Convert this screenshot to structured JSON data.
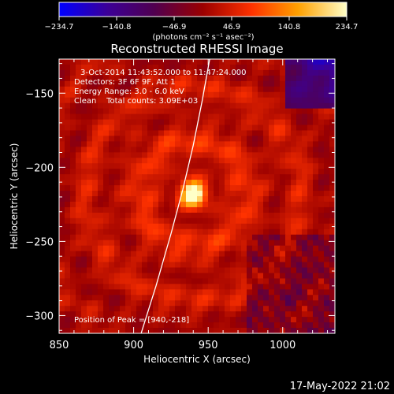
{
  "chart_data": {
    "type": "heatmap",
    "title": "Reconstructed RHESSI Image",
    "xlabel": "Heliocentric X (arcsec)",
    "ylabel": "Heliocentric Y (arcsec)",
    "xlim": [
      850,
      1035
    ],
    "ylim": [
      -312,
      -127
    ],
    "x_ticks": [
      850,
      900,
      950,
      1000
    ],
    "y_ticks": [
      -150,
      -200,
      -250,
      -300
    ],
    "x_tick_labels": [
      "850",
      "900",
      "950",
      "1000"
    ],
    "y_tick_labels": [
      "−150",
      "−200",
      "−250",
      "−300"
    ],
    "colorbar": {
      "ticks": [
        -234.7,
        -140.8,
        -46.9,
        46.9,
        140.8,
        234.7
      ],
      "tick_labels": [
        "−234.7",
        "−140.8",
        "−46.9",
        "46.9",
        "140.8",
        "234.7"
      ],
      "range": [
        -234.7,
        234.7
      ],
      "units_label": "(photons cm⁻² s⁻¹ asec⁻²)",
      "colormap": [
        "#0000ff",
        "#3c0096",
        "#500050",
        "#9b0000",
        "#ff3200",
        "#ffa000",
        "#ffffc8"
      ]
    },
    "info_lines": [
      "3-Oct-2014 11:43:52.000 to 11:47:24.000",
      "Detectors: 3F 6F 9F, Att 1",
      "Energy Range: 3.0 - 6.0 keV",
      "Clean    Total counts: 3.09E+03"
    ],
    "peak_label": "Position of Peak = [940,-218]",
    "peak": {
      "x": 940,
      "y": -218,
      "value": 234.7
    },
    "limb_curve": [
      [
        905,
        -312
      ],
      [
        915,
        -280
      ],
      [
        925,
        -245
      ],
      [
        933,
        -215
      ],
      [
        940,
        -185
      ],
      [
        946,
        -155
      ],
      [
        951,
        -127
      ]
    ],
    "footer": "17-May-2022 21:02"
  }
}
